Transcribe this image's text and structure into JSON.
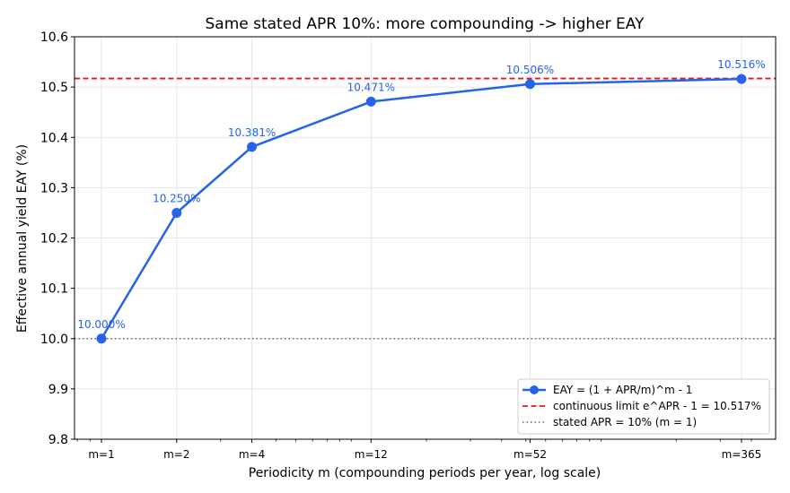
{
  "chart_data": {
    "type": "line",
    "title": "Same stated APR 10%: more compounding -> higher EAY",
    "xlabel": "Periodicity m (compounding periods per year, log scale)",
    "ylabel": "Effective annual yield EAY (%)",
    "x_scale": "log",
    "xlim": [
      0.78,
      500
    ],
    "ylim": [
      9.8,
      10.6
    ],
    "yticks": [
      9.8,
      9.9,
      10.0,
      10.1,
      10.2,
      10.3,
      10.4,
      10.5,
      10.6
    ],
    "ytick_labels": [
      "9.8",
      "9.9",
      "10.0",
      "10.1",
      "10.2",
      "10.3",
      "10.4",
      "10.5",
      "10.6"
    ],
    "x": [
      1,
      2,
      4,
      12,
      52,
      365
    ],
    "xtick_labels": [
      "m=1",
      "m=2",
      "m=4",
      "m=12",
      "m=52",
      "m=365"
    ],
    "grid": true,
    "legend_position": "bottom-right",
    "series": [
      {
        "name": "EAY = (1 + APR/m)^m - 1",
        "values": [
          10.0,
          10.25,
          10.381,
          10.471,
          10.506,
          10.516
        ],
        "data_labels": [
          "10.000%",
          "10.250%",
          "10.381%",
          "10.471%",
          "10.506%",
          "10.516%"
        ],
        "color": "#2563eb",
        "style": "solid-with-markers"
      },
      {
        "name": "continuous limit e^APR - 1 = 10.517%",
        "value": 10.517,
        "color": "#e31a1c",
        "style": "dashed-horizontal"
      },
      {
        "name": "stated APR = 10% (m = 1)",
        "value": 10.0,
        "color": "#666666",
        "style": "dotted-horizontal"
      }
    ]
  }
}
